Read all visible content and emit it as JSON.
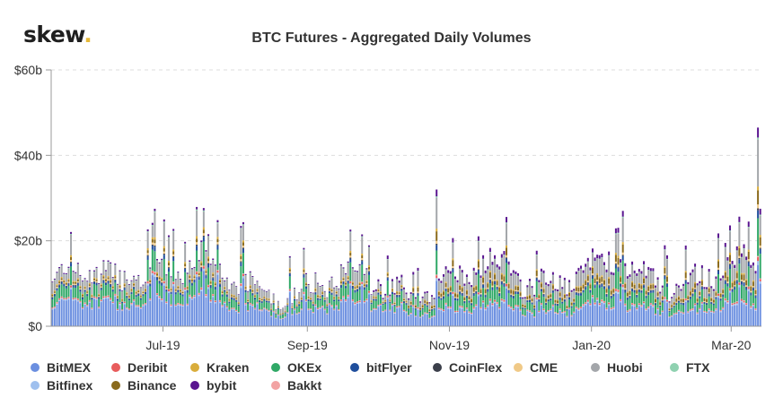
{
  "header": {
    "logo_text": "skew",
    "logo_dot": "."
  },
  "chart_data": {
    "type": "bar",
    "stacked": true,
    "title": "BTC Futures - Aggregated Daily Volumes",
    "xlabel": "",
    "ylabel": "",
    "ylim": [
      0,
      60
    ],
    "y_unit": "billion USD",
    "y_ticks": [
      {
        "value": 0,
        "label": "$0"
      },
      {
        "value": 20,
        "label": "$20b"
      },
      {
        "value": 40,
        "label": "$40b"
      },
      {
        "value": 60,
        "label": "$60b"
      }
    ],
    "x_ticks": [
      {
        "value": "2019-07-01",
        "label": "Jul-19"
      },
      {
        "value": "2019-09-01",
        "label": "Sep-19"
      },
      {
        "value": "2019-11-01",
        "label": "Nov-19"
      },
      {
        "value": "2020-01-01",
        "label": "Jan-20"
      },
      {
        "value": "2020-03-01",
        "label": "Mar-20"
      }
    ],
    "x_range": [
      "2019-05-14",
      "2020-03-14"
    ],
    "grid": "horizontal dashed",
    "legend_position": "bottom",
    "series": [
      {
        "name": "BitMEX",
        "color": "#6b8fe0"
      },
      {
        "name": "Deribit",
        "color": "#e85c5c"
      },
      {
        "name": "Kraken",
        "color": "#d9ad3b"
      },
      {
        "name": "OKEx",
        "color": "#2fa866"
      },
      {
        "name": "bitFlyer",
        "color": "#1f4e9c"
      },
      {
        "name": "CoinFlex",
        "color": "#3b3f4a"
      },
      {
        "name": "CME",
        "color": "#f0c987"
      },
      {
        "name": "Huobi",
        "color": "#a3a6aa"
      },
      {
        "name": "FTX",
        "color": "#8fd1b0"
      },
      {
        "name": "Bitfinex",
        "color": "#9fc0ee"
      },
      {
        "name": "Binance",
        "color": "#8a6a1c"
      },
      {
        "name": "bybit",
        "color": "#5a1590"
      },
      {
        "name": "Bakkt",
        "color": "#f2a3a3"
      }
    ],
    "peaks": [
      {
        "date": "2019-06-27",
        "total": 27.5
      },
      {
        "date": "2019-09-24",
        "total": 21.5
      },
      {
        "date": "2019-10-26",
        "total": 32
      },
      {
        "date": "2020-01-14",
        "total": 27
      },
      {
        "date": "2020-02-27",
        "total": 19.5
      },
      {
        "date": "2020-03-12",
        "total": 46.5
      },
      {
        "date": "2020-03-13",
        "total": 27.5
      }
    ]
  }
}
